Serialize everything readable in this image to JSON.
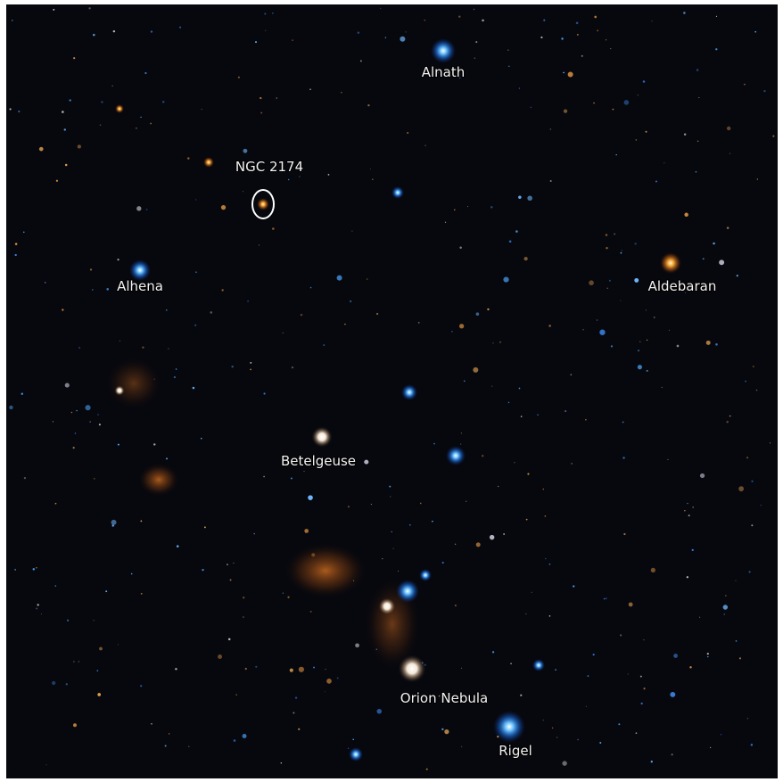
{
  "labels": [
    "Alnath",
    "NGC 2174",
    "Alhena",
    "Aldebaran",
    "Betelgeuse",
    "Orion Nebula",
    "Rigel"
  ]
}
